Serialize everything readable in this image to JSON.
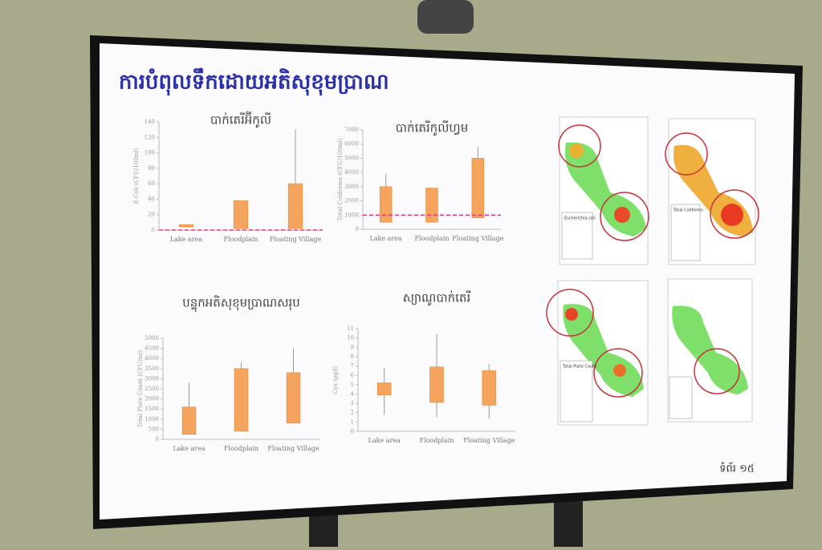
{
  "title": "ការបំពុលទឹកដោយអតិសុខុមប្រាណ",
  "page_number": "ទំព័រ ១៥",
  "maps": [
    {
      "legend_title": "Escherichia coli"
    },
    {
      "legend_title": "Total Coliforms"
    },
    {
      "legend_title": "Total Plate Count"
    }
  ],
  "chart_data": [
    {
      "type": "box",
      "title": "បាក់តេរីអ៊ីកូលី",
      "y_label": "E.Coli (CFU/100ml)",
      "categories": [
        "Lake area",
        "Floodplain",
        "Floating Village"
      ],
      "box_low": [
        4,
        2,
        2
      ],
      "box_high": [
        7,
        38,
        60
      ],
      "whisker_low": [
        null,
        null,
        null
      ],
      "whisker_high": [
        null,
        null,
        130
      ],
      "ref_line": 0,
      "color": "#f5a45e",
      "ref_color": "#e0407a",
      "ylim": [
        0,
        140
      ],
      "yticks": [
        0,
        20,
        40,
        60,
        80,
        100,
        120,
        140
      ]
    },
    {
      "type": "box",
      "title": "បាក់តេរីកូលីហ្វម",
      "y_label": "Total Coliforms (CFU/100ml)",
      "categories": [
        "Lake area",
        "Floodplain",
        "Floating Village"
      ],
      "box_low": [
        500,
        500,
        800
      ],
      "box_high": [
        3000,
        2900,
        5000
      ],
      "whisker_low": [
        null,
        null,
        null
      ],
      "whisker_high": [
        3900,
        null,
        5800
      ],
      "ref_line": 1000,
      "color": "#f5a45e",
      "ref_color": "#e0407a",
      "ylim": [
        0,
        7000
      ],
      "yticks": [
        0,
        1000,
        2000,
        3000,
        4000,
        5000,
        6000,
        7000
      ]
    },
    {
      "type": "box",
      "title": "បន្ទុកអតិសុខុមប្រាណសរុប",
      "y_label": "Total Plate Count (CFU/ml)",
      "categories": [
        "Lake area",
        "Floodplain",
        "Floating Village"
      ],
      "box_low": [
        250,
        400,
        800
      ],
      "box_high": [
        1600,
        3500,
        3300
      ],
      "whisker_low": [
        null,
        null,
        null
      ],
      "whisker_high": [
        2800,
        3800,
        4500
      ],
      "ref_line": null,
      "color": "#f5a45e",
      "ref_color": "#e0407a",
      "ylim": [
        0,
        5000
      ],
      "yticks": [
        0,
        500,
        1000,
        1500,
        2000,
        2500,
        3000,
        3500,
        4000,
        4500,
        5000
      ]
    },
    {
      "type": "box",
      "title": "ស្យាណូបាក់តេរី",
      "y_label": "Cya (µg/l)",
      "categories": [
        "Lake area",
        "Floodplain",
        "Floating Village"
      ],
      "box_low": [
        3.9,
        3.1,
        2.8
      ],
      "box_high": [
        5.2,
        6.9,
        6.5
      ],
      "whisker_low": [
        1.8,
        1.5,
        1.4
      ],
      "whisker_high": [
        6.8,
        10.4,
        7.2
      ],
      "ref_line": null,
      "color": "#f5a45e",
      "ref_color": "#e0407a",
      "ylim": [
        0,
        11
      ],
      "yticks": [
        0,
        1,
        2,
        3,
        4,
        5,
        6,
        7,
        8,
        9,
        10,
        11
      ]
    }
  ]
}
